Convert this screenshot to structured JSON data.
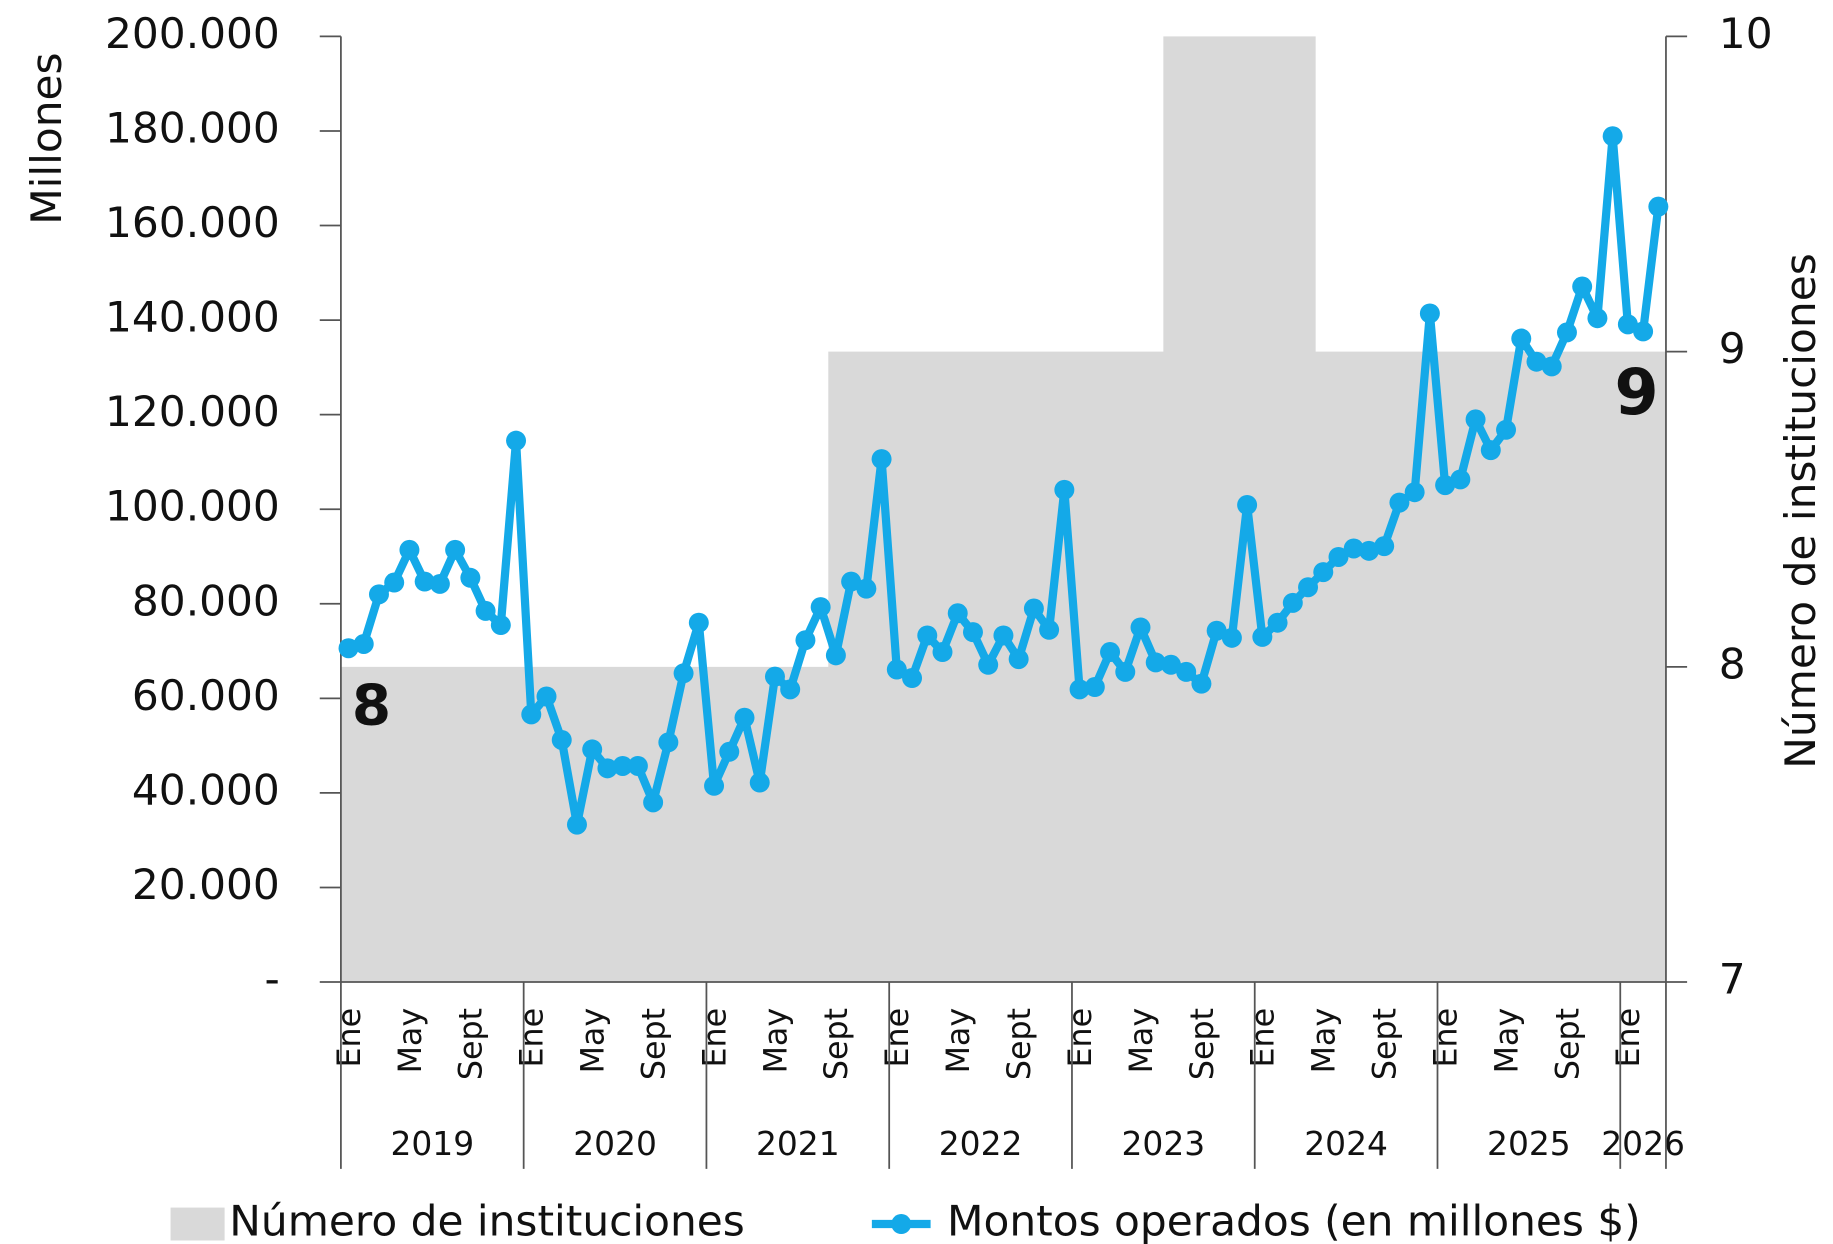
{
  "chart_data": {
    "type": "combo",
    "y_label": "Millones",
    "y2_label": "Número de instituciones",
    "categories": [
      "Ene",
      null,
      null,
      null,
      "May",
      null,
      null,
      null,
      "Sept",
      null,
      null,
      null,
      "Ene",
      null,
      null,
      null,
      "May",
      null,
      null,
      null,
      "Sept",
      null,
      null,
      null,
      "Ene",
      null,
      null,
      null,
      "May",
      null,
      null,
      null,
      "Sept",
      null,
      null,
      null,
      "Ene",
      null,
      null,
      null,
      "May",
      null,
      null,
      null,
      "Sept",
      null,
      null,
      null,
      "Ene",
      null,
      null,
      null,
      "May",
      null,
      null,
      null,
      "Sept",
      null,
      null,
      null,
      "Ene",
      null,
      null,
      null,
      "May",
      null,
      null,
      null,
      "Sept",
      null,
      null,
      null,
      "Ene",
      null,
      null,
      null,
      "May",
      null,
      null,
      null,
      "Sept",
      null,
      null,
      null,
      "Ene",
      null,
      null
    ],
    "years": [
      "2019",
      "2020",
      "2021",
      "2022",
      "2023",
      "2024",
      "2025",
      "2026"
    ],
    "series": [
      {
        "name": "Número de instituciones",
        "type": "area",
        "axis": "y2",
        "color": "#d9d9d9",
        "values": [
          8,
          8,
          8,
          8,
          8,
          8,
          8,
          8,
          8,
          8,
          8,
          8,
          8,
          8,
          8,
          8,
          8,
          8,
          8,
          8,
          8,
          8,
          8,
          8,
          8,
          8,
          8,
          8,
          8,
          8,
          8,
          8,
          9,
          9,
          9,
          9,
          9,
          9,
          9,
          9,
          9,
          9,
          9,
          9,
          9,
          9,
          9,
          9,
          9,
          9,
          9,
          9,
          9,
          9,
          10,
          10,
          10,
          10,
          10,
          10,
          10,
          10,
          10,
          10,
          9,
          9,
          9,
          9,
          9,
          9,
          9,
          9,
          9,
          9,
          9,
          9,
          9,
          9,
          9,
          9,
          9,
          9,
          9,
          9,
          9,
          9,
          9
        ]
      },
      {
        "name": "Montos operados (en millones $)",
        "type": "line",
        "axis": "y",
        "color": "#14a9e8",
        "values": [
          70600,
          71500,
          82000,
          84500,
          91400,
          84700,
          84200,
          91400,
          85500,
          78500,
          75500,
          114500,
          56600,
          60400,
          51200,
          33300,
          49200,
          45200,
          45700,
          45700,
          38000,
          50700,
          65300,
          76000,
          41500,
          48700,
          55900,
          42200,
          64600,
          61900,
          72300,
          79300,
          69100,
          84700,
          83200,
          110600,
          66100,
          64300,
          73300,
          69800,
          78000,
          74000,
          67100,
          73300,
          68300,
          79000,
          74500,
          104100,
          61900,
          62400,
          69800,
          65600,
          75000,
          67600,
          67100,
          65600,
          63100,
          74300,
          72800,
          100900,
          73000,
          76000,
          80200,
          83500,
          86700,
          89900,
          91700,
          91200,
          92200,
          101400,
          103600,
          141400,
          105100,
          106300,
          119000,
          112500,
          116800,
          136100,
          131200,
          130200,
          137400,
          147100,
          140400,
          178900,
          139100,
          137600,
          164000
        ]
      }
    ],
    "annotations": [
      "8",
      "9"
    ],
    "ylim": [
      0,
      200000
    ],
    "yticks": [
      {
        "value": 0,
        "label": "-"
      },
      {
        "value": 20000,
        "label": "20.000"
      },
      {
        "value": 40000,
        "label": "40.000"
      },
      {
        "value": 60000,
        "label": "60.000"
      },
      {
        "value": 80000,
        "label": "80.000"
      },
      {
        "value": 100000,
        "label": "100.000"
      },
      {
        "value": 120000,
        "label": "120.000"
      },
      {
        "value": 140000,
        "label": "140.000"
      },
      {
        "value": 160000,
        "label": "160.000"
      },
      {
        "value": 180000,
        "label": "180.000"
      },
      {
        "value": 200000,
        "label": "200.000"
      }
    ],
    "y2lim": [
      7,
      10
    ],
    "y2ticks": [
      7,
      8,
      9,
      10
    ]
  }
}
